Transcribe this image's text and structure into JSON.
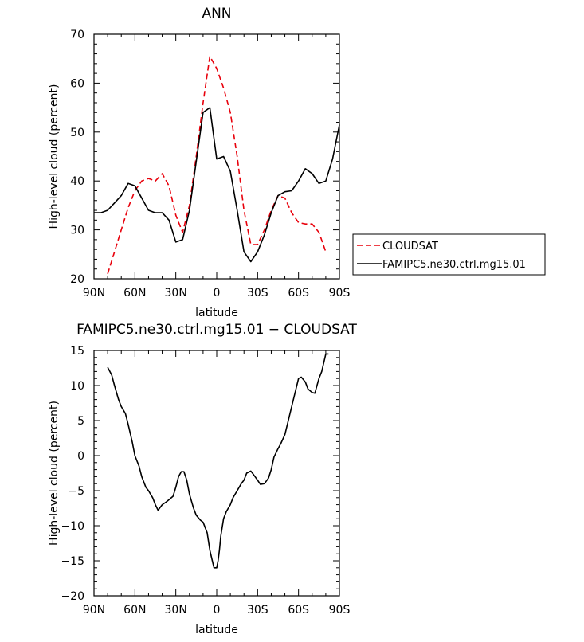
{
  "chart_data": [
    {
      "type": "line",
      "title": "ANN",
      "xlabel": "latitude",
      "ylabel": "High-level cloud (percent)",
      "xlim": [
        90,
        -90
      ],
      "ylim": [
        20,
        70
      ],
      "x_direction": "north-to-south",
      "xticks": [
        {
          "value": 90,
          "label": "90N"
        },
        {
          "value": 60,
          "label": "60N"
        },
        {
          "value": 30,
          "label": "30N"
        },
        {
          "value": 0,
          "label": "0"
        },
        {
          "value": -30,
          "label": "30S"
        },
        {
          "value": -60,
          "label": "60S"
        },
        {
          "value": -90,
          "label": "90S"
        }
      ],
      "yticks": [
        20,
        30,
        40,
        50,
        60,
        70
      ],
      "grid": false,
      "legend": {
        "placement": "right",
        "items": [
          {
            "label": "CLOUDSAT",
            "series": 0
          },
          {
            "label": "FAMIPC5.ne30.ctrl.mg15.01",
            "series": 1
          }
        ]
      },
      "series": [
        {
          "name": "CLOUDSAT",
          "color": "#e8000b",
          "dash": "dashed",
          "x": [
            80,
            75,
            70,
            65,
            60,
            55,
            50,
            45,
            40,
            35,
            30,
            25,
            20,
            15,
            10,
            5,
            0,
            -5,
            -10,
            -15,
            -20,
            -25,
            -30,
            -35,
            -40,
            -45,
            -50,
            -55,
            -60,
            -65,
            -70,
            -75,
            -80
          ],
          "y": [
            21,
            25.5,
            30,
            34.5,
            38,
            40,
            40.5,
            40,
            41.5,
            39,
            33,
            29.5,
            35,
            45,
            56,
            65.5,
            63,
            59,
            54,
            45,
            34,
            27,
            27,
            30,
            34,
            37,
            36.5,
            33.5,
            31.5,
            31.2,
            31.2,
            29.5,
            25.5
          ]
        },
        {
          "name": "FAMIPC5.ne30.ctrl.mg15.01",
          "color": "#000000",
          "dash": "solid",
          "x": [
            90,
            85,
            80,
            75,
            70,
            65,
            60,
            55,
            50,
            45,
            40,
            35,
            30,
            25,
            20,
            15,
            10,
            5,
            0,
            -5,
            -10,
            -15,
            -20,
            -25,
            -30,
            -35,
            -40,
            -45,
            -50,
            -55,
            -60,
            -65,
            -70,
            -75,
            -80,
            -85,
            -90
          ],
          "y": [
            33.5,
            33.5,
            34,
            35.5,
            37,
            39.5,
            39,
            36.5,
            34,
            33.5,
            33.5,
            32,
            27.5,
            28,
            34,
            44,
            54,
            55,
            44.5,
            45,
            42,
            34,
            25.5,
            23.5,
            25.5,
            29,
            33.5,
            37,
            37.8,
            38,
            40,
            42.5,
            41.5,
            39.5,
            40,
            44.5,
            51.5
          ]
        }
      ]
    },
    {
      "type": "line",
      "title": "FAMIPC5.ne30.ctrl.mg15.01  −  CLOUDSAT",
      "xlabel": "latitude",
      "ylabel": "High-level cloud (percent)",
      "xlim": [
        90,
        -90
      ],
      "ylim": [
        -20,
        15
      ],
      "x_direction": "north-to-south",
      "xticks": [
        {
          "value": 90,
          "label": "90N"
        },
        {
          "value": 60,
          "label": "60N"
        },
        {
          "value": 30,
          "label": "30N"
        },
        {
          "value": 0,
          "label": "0"
        },
        {
          "value": -30,
          "label": "30S"
        },
        {
          "value": -60,
          "label": "60S"
        },
        {
          "value": -90,
          "label": "90S"
        }
      ],
      "yticks": [
        -20,
        -15,
        -10,
        -5,
        0,
        5,
        10,
        15
      ],
      "grid": false,
      "series": [
        {
          "color": "#000000",
          "dash": "solid",
          "x": [
            80,
            77,
            75,
            72,
            70,
            67,
            65,
            62,
            60,
            57,
            55,
            52,
            50,
            47,
            45,
            43,
            40,
            37,
            35,
            32,
            30,
            28,
            26,
            24,
            22,
            20,
            17,
            15,
            12,
            10,
            7,
            5,
            3,
            2,
            1,
            0,
            -1,
            -2,
            -3,
            -5,
            -7,
            -10,
            -12,
            -15,
            -18,
            -20,
            -22,
            -25,
            -27,
            -30,
            -32,
            -35,
            -38,
            -40,
            -42,
            -45,
            -47,
            -50,
            -55,
            -60,
            -62,
            -65,
            -67,
            -70,
            -72,
            -75,
            -77,
            -80,
            -82
          ],
          "y": [
            12.6,
            11.5,
            10,
            8,
            7,
            6,
            4.5,
            2,
            0,
            -1.5,
            -3,
            -4.5,
            -5,
            -6,
            -7,
            -7.8,
            -7,
            -6.6,
            -6.3,
            -5.8,
            -4.5,
            -3,
            -2.3,
            -2.3,
            -3.5,
            -5.5,
            -7.5,
            -8.5,
            -9.2,
            -9.5,
            -11,
            -13.5,
            -15.2,
            -16,
            -16,
            -16,
            -15,
            -13.5,
            -11.5,
            -9,
            -8,
            -7,
            -6,
            -5,
            -4,
            -3.5,
            -2.5,
            -2.2,
            -2.7,
            -3.5,
            -4.1,
            -4,
            -3.2,
            -2,
            -0.2,
            1,
            1.7,
            3,
            7,
            11,
            11.2,
            10.5,
            9.5,
            9,
            8.9,
            11,
            12,
            14.5,
            14.5
          ]
        }
      ]
    }
  ]
}
